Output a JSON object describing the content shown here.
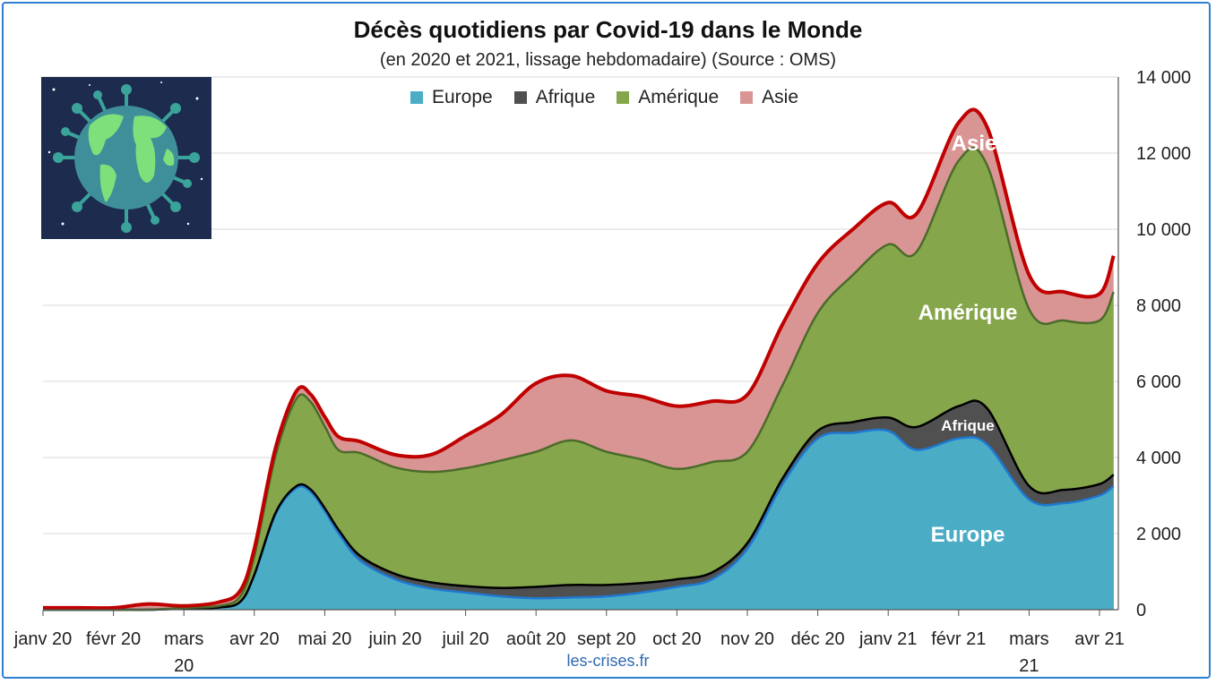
{
  "colors": {
    "europe": "#4bacc6",
    "europe_line": "#1f78d1",
    "afrique": "#505050",
    "afrique_line": "#000000",
    "amerique": "#86a64b",
    "amerique_line": "#4a6b2a",
    "asie": "#d99594",
    "asie_line": "#c00000",
    "grid": "#d9d9d9"
  },
  "source": "les-crises.fr",
  "globe_image": "globe-virus-icon",
  "chart_data": {
    "type": "area",
    "stacked": true,
    "title": "Décès quotidiens par Covid-19 dans le Monde",
    "subtitle": "(en 2020 et 2021, lissage hebdomadaire) (Source : OMS)",
    "y_axis_side": "right",
    "ylim": [
      0,
      14000
    ],
    "y_ticks": [
      0,
      2000,
      4000,
      6000,
      8000,
      10000,
      12000,
      14000
    ],
    "y_tick_labels": [
      "0",
      "2 000",
      "4 000",
      "6 000",
      "8 000",
      "10 000",
      "12 000",
      "14 000"
    ],
    "x_tick_labels": [
      [
        "janv 20"
      ],
      [
        "févr 20"
      ],
      [
        "mars",
        "20"
      ],
      [
        "avr 20"
      ],
      [
        "mai 20"
      ],
      [
        "juin 20"
      ],
      [
        "juil 20"
      ],
      [
        "août 20"
      ],
      [
        "sept 20"
      ],
      [
        "oct 20"
      ],
      [
        "nov 20"
      ],
      [
        "déc 20"
      ],
      [
        "janv 21"
      ],
      [
        "févr 21"
      ],
      [
        "mars",
        "21"
      ],
      [
        "avr 21"
      ]
    ],
    "legend": [
      "Europe",
      "Afrique",
      "Amérique",
      "Asie"
    ],
    "legend_position": "top",
    "grid": true,
    "x_month_index": [
      0,
      0.5,
      1,
      1.5,
      2,
      2.5,
      2.8,
      3,
      3.3,
      3.6,
      3.8,
      4,
      4.2,
      4.5,
      5,
      5.5,
      6,
      6.5,
      7,
      7.5,
      8,
      8.5,
      9,
      9.5,
      10,
      10.5,
      11,
      11.5,
      12,
      12.4,
      13,
      13.4,
      14,
      14.5,
      15,
      15.2
    ],
    "series": [
      {
        "name": "Europe",
        "values": [
          0,
          0,
          0,
          0,
          30,
          60,
          200,
          900,
          2500,
          3200,
          3100,
          2600,
          2000,
          1300,
          800,
          560,
          450,
          350,
          300,
          320,
          350,
          450,
          600,
          800,
          1600,
          3300,
          4500,
          4650,
          4700,
          4200,
          4500,
          4350,
          2900,
          2800,
          3000,
          3250
        ]
      },
      {
        "name": "Afrique",
        "values": [
          0,
          0,
          0,
          0,
          0,
          0,
          10,
          20,
          40,
          50,
          60,
          70,
          90,
          120,
          140,
          160,
          170,
          220,
          300,
          330,
          300,
          250,
          200,
          180,
          150,
          150,
          200,
          280,
          350,
          600,
          850,
          950,
          350,
          350,
          300,
          300
        ]
      },
      {
        "name": "Amérique",
        "values": [
          0,
          0,
          0,
          0,
          20,
          40,
          140,
          480,
          1500,
          2300,
          2300,
          2150,
          2100,
          2700,
          2800,
          2900,
          3100,
          3350,
          3550,
          3800,
          3500,
          3250,
          2900,
          2900,
          2400,
          2450,
          3100,
          3870,
          4550,
          4600,
          6450,
          6400,
          4650,
          4450,
          4300,
          4800
        ]
      },
      {
        "name": "Asie",
        "values": [
          50,
          50,
          50,
          150,
          50,
          100,
          150,
          200,
          200,
          200,
          200,
          250,
          350,
          300,
          330,
          450,
          850,
          1200,
          1800,
          1700,
          1600,
          1650,
          1650,
          1600,
          1500,
          1600,
          1300,
          1200,
          1100,
          1000,
          1000,
          1000,
          900,
          750,
          700,
          950
        ]
      }
    ]
  },
  "area_labels": [
    "Asie",
    "Amérique",
    "Afrique",
    "Europe"
  ]
}
